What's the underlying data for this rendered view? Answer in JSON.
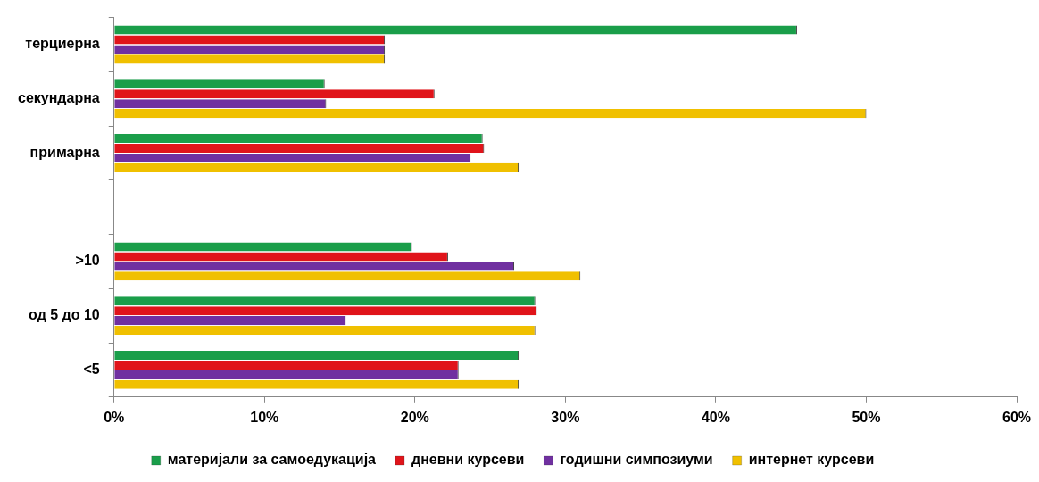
{
  "chart_data": {
    "type": "bar",
    "orientation": "horizontal",
    "categories": [
      "терциерна",
      "секундарна",
      "примарна",
      null,
      ">10",
      "од 5 до 10",
      "<5"
    ],
    "series": [
      {
        "name": "материјали за самоедукација",
        "color": "#1a9e4a",
        "values": [
          45.4,
          14.0,
          24.5,
          null,
          19.8,
          28.0,
          26.9
        ]
      },
      {
        "name": "дневни курсеви",
        "color": "#e0141a",
        "values": [
          18.0,
          21.3,
          24.6,
          null,
          22.2,
          28.1,
          22.9
        ]
      },
      {
        "name": "годишни симпозиуми",
        "color": "#7030a0",
        "values": [
          18.0,
          14.1,
          23.7,
          null,
          26.6,
          15.4,
          22.9
        ]
      },
      {
        "name": "интернет курсеви",
        "color": "#f0c000",
        "values": [
          18.0,
          50.0,
          26.9,
          null,
          31.0,
          28.0,
          26.9
        ]
      }
    ],
    "xlim": [
      0,
      60
    ],
    "xticks": [
      {
        "value": 0,
        "label": "0%"
      },
      {
        "value": 10,
        "label": "10%"
      },
      {
        "value": 20,
        "label": "20%"
      },
      {
        "value": 30,
        "label": "30%"
      },
      {
        "value": 40,
        "label": "40%"
      },
      {
        "value": 50,
        "label": "50%"
      },
      {
        "value": 60,
        "label": "60%"
      }
    ],
    "grid": false,
    "legend": "bottom"
  }
}
